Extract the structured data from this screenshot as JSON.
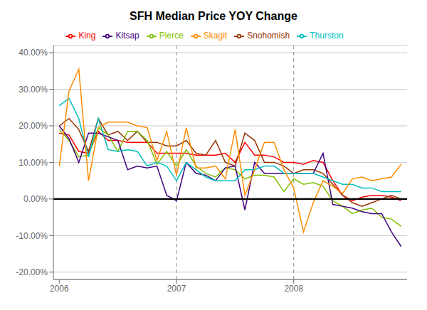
{
  "chart_data": {
    "type": "line",
    "title": "SFH Median Price YOY Change",
    "x": [
      2006.0,
      2006.083333,
      2006.166666,
      2006.249999,
      2006.333332,
      2006.416665,
      2006.499998,
      2006.583331,
      2006.666664,
      2006.749997,
      2006.83333,
      2006.916663,
      2006.999996,
      2007.083329,
      2007.166662,
      2007.249995,
      2007.333328,
      2007.416661,
      2007.499994,
      2007.583327,
      2007.66666,
      2007.749993,
      2007.833326,
      2007.916659,
      2007.999992,
      2008.083325,
      2008.166658,
      2008.249991,
      2008.333324,
      2008.416657,
      2008.49999,
      2008.583323,
      2008.666656,
      2008.749989,
      2008.833322,
      2008.916655
    ],
    "series": [
      {
        "name": "King",
        "color": "#FF0000",
        "values": [
          0.18,
          0.175,
          0.13,
          0.125,
          0.185,
          0.16,
          0.16,
          0.155,
          0.155,
          0.155,
          0.125,
          0.125,
          0.125,
          0.125,
          0.12,
          0.12,
          0.12,
          0.125,
          0.1,
          0.155,
          0.12,
          0.12,
          0.115,
          0.1,
          0.1,
          0.095,
          0.105,
          0.1,
          0.05,
          0.01,
          -0.005,
          0.005,
          0.01,
          0.01,
          0.005,
          -0.005
        ]
      },
      {
        "name": "Snohomish",
        "color": "#993300",
        "values": [
          0.2,
          0.22,
          0.19,
          0.13,
          0.22,
          0.175,
          0.185,
          0.16,
          0.185,
          0.155,
          0.155,
          0.145,
          0.145,
          0.16,
          0.125,
          0.12,
          0.16,
          0.1,
          0.09,
          0.18,
          0.16,
          0.1,
          0.1,
          0.09,
          0.07,
          0.08,
          0.08,
          0.07,
          0.04,
          0.01,
          -0.01,
          -0.02,
          -0.01,
          0.0,
          0.01,
          0.0
        ]
      },
      {
        "name": "Pierce",
        "color": "#7FBF00",
        "values": [
          0.19,
          0.16,
          0.115,
          0.12,
          0.195,
          0.175,
          0.13,
          0.185,
          0.185,
          0.16,
          0.095,
          0.13,
          0.09,
          0.135,
          0.09,
          0.07,
          0.06,
          0.085,
          0.08,
          0.055,
          0.065,
          0.065,
          0.06,
          0.02,
          0.055,
          0.04,
          0.045,
          0.035,
          -0.005,
          -0.02,
          -0.04,
          -0.03,
          -0.025,
          -0.05,
          -0.055,
          -0.075
        ]
      },
      {
        "name": "Kitsap",
        "color": "#3F007F",
        "values": [
          0.2,
          0.165,
          0.1,
          0.18,
          0.18,
          0.17,
          0.16,
          0.08,
          0.09,
          0.085,
          0.09,
          0.01,
          -0.005,
          0.1,
          0.07,
          0.065,
          0.05,
          0.085,
          0.09,
          -0.03,
          0.1,
          0.07,
          0.07,
          0.07,
          0.07,
          0.07,
          0.07,
          0.125,
          -0.015,
          -0.02,
          -0.025,
          -0.035,
          -0.04,
          -0.04,
          -0.09,
          -0.13
        ]
      },
      {
        "name": "Thurston",
        "color": "#00BFBF",
        "values": [
          0.255,
          0.275,
          0.22,
          0.115,
          0.22,
          0.135,
          0.13,
          0.135,
          0.13,
          0.09,
          0.1,
          0.09,
          0.05,
          0.1,
          0.08,
          0.06,
          0.05,
          0.05,
          0.05,
          0.08,
          0.08,
          0.09,
          0.09,
          0.07,
          0.07,
          0.07,
          0.07,
          0.06,
          0.05,
          0.04,
          0.04,
          0.03,
          0.03,
          0.02,
          0.02,
          0.02
        ]
      },
      {
        "name": "Skagit",
        "color": "#FF8C00",
        "values": [
          0.09,
          0.295,
          0.355,
          0.05,
          0.195,
          0.21,
          0.21,
          0.21,
          0.2,
          0.195,
          0.105,
          0.185,
          0.065,
          0.195,
          0.085,
          0.085,
          0.09,
          0.055,
          0.19,
          0.01,
          0.08,
          0.155,
          0.155,
          0.08,
          0.03,
          -0.09,
          -0.01,
          0.05,
          0.035,
          0.015,
          0.055,
          0.06,
          0.05,
          0.055,
          0.06,
          0.095
        ]
      }
    ],
    "xlim": [
      2005.95,
      2008.966655
    ],
    "xticks": [
      2006,
      2007,
      2008
    ],
    "ylim": [
      -0.22,
      0.42
    ],
    "yticks": [
      {
        "value": -0.2,
        "label": "-20.00%"
      },
      {
        "value": -0.1,
        "label": "-10.00%"
      },
      {
        "value": 0,
        "label": "0.00%"
      },
      {
        "value": 0.1,
        "label": "10.00%"
      },
      {
        "value": 0.2,
        "label": "20.00%"
      },
      {
        "value": 0.3,
        "label": "30.00%"
      },
      {
        "value": 0.4,
        "label": "40.00%"
      }
    ],
    "vlines": [
      2007.0,
      2008.0
    ],
    "hlines": [
      0
    ],
    "grid": "y",
    "legend": "top"
  }
}
